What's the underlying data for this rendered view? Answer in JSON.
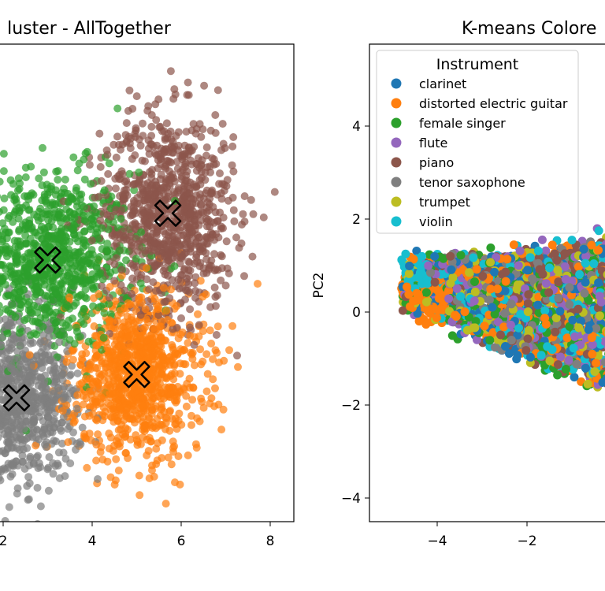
{
  "chart_data": [
    {
      "type": "scatter",
      "title": "luster - AllTogether",
      "xlabel": "",
      "ylabel": "",
      "xticks": [
        "2",
        "4",
        "6",
        "8"
      ],
      "grid": false,
      "clusters": [
        {
          "color": "#2ca02c",
          "center": [
            3.0,
            1.0
          ],
          "spread": [
            0.95,
            0.85
          ],
          "count": 950
        },
        {
          "color": "#8c564b",
          "center": [
            5.7,
            1.9
          ],
          "spread": [
            0.75,
            0.95
          ],
          "count": 900
        },
        {
          "color": "#ff7f0e",
          "center": [
            5.0,
            -1.2
          ],
          "spread": [
            0.75,
            0.8
          ],
          "count": 950
        },
        {
          "color": "#7f7f7f",
          "center": [
            2.3,
            -1.65
          ],
          "spread": [
            0.7,
            0.75
          ],
          "count": 850
        }
      ],
      "centroids": [
        {
          "x": 3.0,
          "y": 1.0
        },
        {
          "x": 5.7,
          "y": 1.9
        },
        {
          "x": 5.0,
          "y": -1.2
        },
        {
          "x": 2.3,
          "y": -1.65
        }
      ]
    },
    {
      "type": "scatter",
      "title": "K-means Colore",
      "xlabel": "",
      "ylabel": "PC2",
      "xticks": [
        "−4",
        "−2"
      ],
      "yticks": [
        "4",
        "2",
        "0",
        "−2",
        "−4"
      ],
      "grid": false,
      "legend": {
        "title": "Instrument",
        "placement": "upper-left",
        "entries": [
          {
            "label": "clarinet",
            "color": "#1f77b4"
          },
          {
            "label": "distorted electric guitar",
            "color": "#ff7f0e"
          },
          {
            "label": "female singer",
            "color": "#2ca02c"
          },
          {
            "label": "flute",
            "color": "#9467bd"
          },
          {
            "label": "piano",
            "color": "#8c564b"
          },
          {
            "label": "tenor saxophone",
            "color": "#7f7f7f"
          },
          {
            "label": "trumpet",
            "color": "#bcbd22"
          },
          {
            "label": "violin",
            "color": "#17becf"
          }
        ]
      }
    }
  ]
}
